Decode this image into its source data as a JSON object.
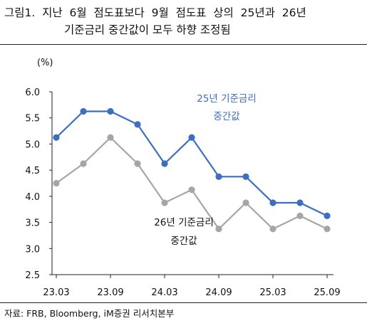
{
  "figure": {
    "title_line1": "그림1.  지난  6월  점도표보다  9월  점도표  상의  25년과  26년",
    "title_line2": "기준금리 중간값이 모두 하향 조정됨",
    "source": "자료: FRB, Bloomberg, iM증권 리서치본부"
  },
  "chart_data": {
    "type": "line",
    "title": "",
    "xlabel": "",
    "ylabel": "(%)",
    "ylim": [
      2.5,
      6.0
    ],
    "yticks": [
      "6.0",
      "5.5",
      "5.0",
      "4.5",
      "4.0",
      "3.5",
      "3.0",
      "2.5"
    ],
    "xticks": [
      "23.03",
      "23.09",
      "24.03",
      "24.09",
      "25.03",
      "25.09"
    ],
    "x": [
      "23.03",
      "23.06",
      "23.09",
      "23.12",
      "24.03",
      "24.06",
      "24.09",
      "24.12",
      "25.03",
      "25.06",
      "25.09"
    ],
    "grid": false,
    "series": [
      {
        "name": "25년 기준금리 중간값",
        "label_line1": "25년 기준금리",
        "label_line2": "중간값",
        "color": "#3c6fc0",
        "values": [
          5.125,
          5.625,
          5.625,
          5.375,
          4.625,
          5.125,
          4.375,
          4.375,
          3.875,
          3.875,
          3.625
        ]
      },
      {
        "name": "26년 기준금리 중간값",
        "label_line1": "26년 기준금리",
        "label_line2": "중간값",
        "color": "#a6a6a6",
        "values": [
          4.25,
          4.625,
          5.125,
          4.625,
          3.875,
          4.125,
          3.375,
          3.875,
          3.375,
          3.625,
          3.375
        ]
      }
    ]
  }
}
